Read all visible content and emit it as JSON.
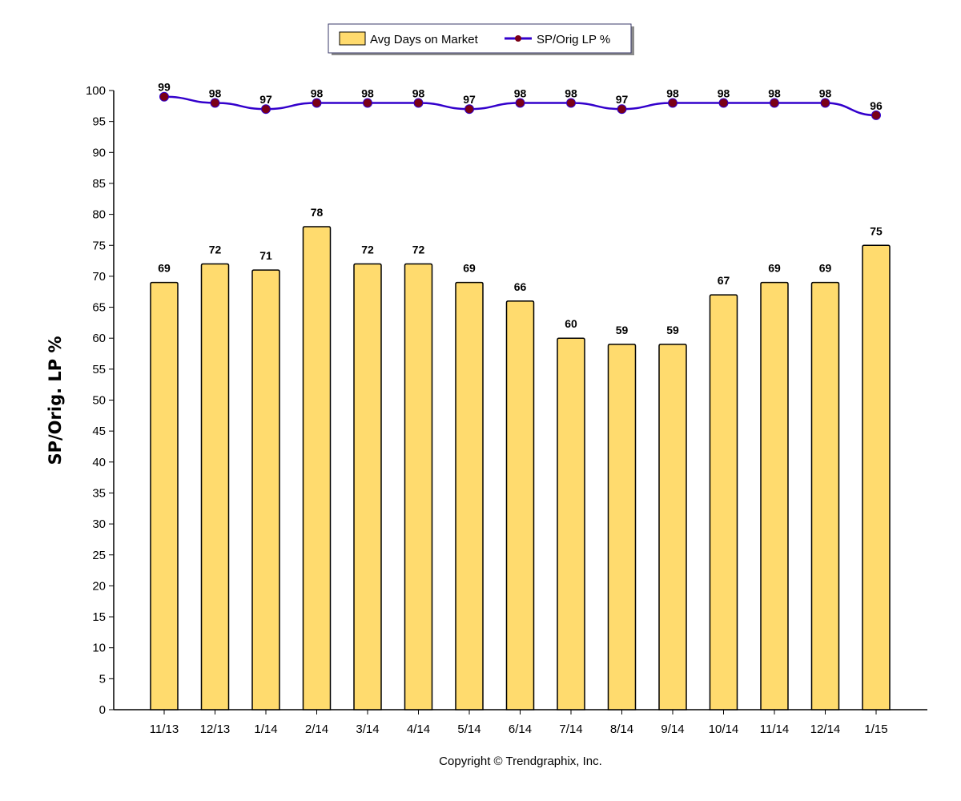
{
  "chart_data": {
    "type": "bar",
    "categories": [
      "11/13",
      "12/13",
      "1/14",
      "2/14",
      "3/14",
      "4/14",
      "5/14",
      "6/14",
      "7/14",
      "8/14",
      "9/14",
      "10/14",
      "11/14",
      "12/14",
      "1/15"
    ],
    "series": [
      {
        "name": "Avg Days on Market",
        "type": "bar",
        "color": "#ffdb6e",
        "values": [
          69,
          72,
          71,
          78,
          72,
          72,
          69,
          66,
          60,
          59,
          59,
          67,
          69,
          69,
          75
        ]
      },
      {
        "name": "SP/Orig LP %",
        "type": "line",
        "color": "#3300cc",
        "marker_color": "#7a0016",
        "values": [
          99,
          98,
          97,
          98,
          98,
          98,
          97,
          98,
          98,
          97,
          98,
          98,
          98,
          98,
          96
        ]
      }
    ],
    "ylabel": "SP/Orig. LP %",
    "ylim": [
      0,
      100
    ],
    "yticks": [
      0,
      5,
      10,
      15,
      20,
      25,
      30,
      35,
      40,
      45,
      50,
      55,
      60,
      65,
      70,
      75,
      80,
      85,
      90,
      95,
      100
    ],
    "legend_position": "top-center",
    "grid": false
  },
  "legend": {
    "bar_label": "Avg Days on Market",
    "line_label": "SP/Orig LP %"
  },
  "copyright": "Copyright © Trendgraphix, Inc."
}
